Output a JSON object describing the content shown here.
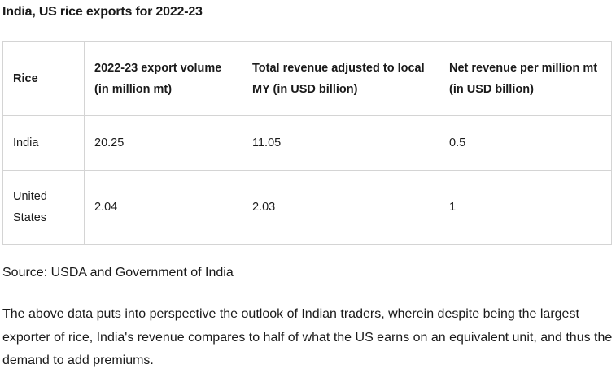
{
  "article": {
    "table_title": "India, US rice exports for 2022-23",
    "table": {
      "headers": [
        "Rice",
        "2022-23 export volume (in million mt)",
        "Total revenue adjusted to local MY (in USD billion)",
        "Net revenue per million mt (in USD billion)"
      ],
      "rows": [
        [
          "India",
          "20.25",
          "11.05",
          "0.5"
        ],
        [
          "United States",
          "2.04",
          "2.03",
          "1"
        ]
      ]
    },
    "source": "Source: USDA and Government of India",
    "paragraph": "The above data puts into perspective the outlook of Indian traders, wherein despite being the largest exporter of rice, India's revenue compares to half of what the US earns on an equivalent unit, and thus the demand to add premiums."
  }
}
